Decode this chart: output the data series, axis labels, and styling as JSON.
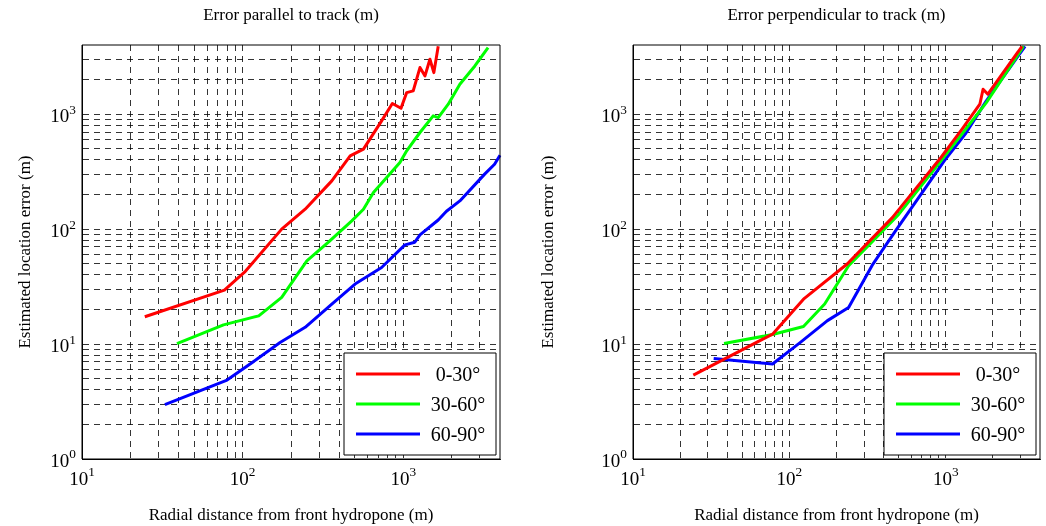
{
  "chart_data": [
    {
      "type": "line",
      "title": "Error parallel to track (m)",
      "xlabel": "Radial distance from front hydropone (m)",
      "ylabel": "Estimated location error (m)",
      "log": "xy",
      "grid": true,
      "legend": "bottom right",
      "xlim": [
        10,
        4000
      ],
      "ylim": [
        1,
        4000
      ],
      "xticks": [
        {
          "value": 10,
          "label": "10$^{1}$"
        },
        {
          "value": 20,
          "label": null
        },
        {
          "value": 30,
          "label": null
        },
        {
          "value": 40,
          "label": null
        },
        {
          "value": 50,
          "label": null
        },
        {
          "value": 60,
          "label": null
        },
        {
          "value": 70,
          "label": null
        },
        {
          "value": 80,
          "label": null
        },
        {
          "value": 90,
          "label": null
        },
        {
          "value": 100,
          "label": "10$^{2}$"
        },
        {
          "value": 200,
          "label": null
        },
        {
          "value": 300,
          "label": null
        },
        {
          "value": 400,
          "label": null
        },
        {
          "value": 500,
          "label": null
        },
        {
          "value": 600,
          "label": null
        },
        {
          "value": 700,
          "label": null
        },
        {
          "value": 800,
          "label": null
        },
        {
          "value": 900,
          "label": null
        },
        {
          "value": 1000,
          "label": "10$^{3}$"
        },
        {
          "value": 2000,
          "label": null
        },
        {
          "value": 3000,
          "label": null
        }
      ],
      "yticks": [
        {
          "value": 1,
          "label": "10$^{0}$"
        },
        {
          "value": 2,
          "label": null
        },
        {
          "value": 3,
          "label": null
        },
        {
          "value": 4,
          "label": null
        },
        {
          "value": 5,
          "label": null
        },
        {
          "value": 6,
          "label": null
        },
        {
          "value": 7,
          "label": null
        },
        {
          "value": 8,
          "label": null
        },
        {
          "value": 9,
          "label": null
        },
        {
          "value": 10,
          "label": "10$^{1}$"
        },
        {
          "value": 20,
          "label": null
        },
        {
          "value": 30,
          "label": null
        },
        {
          "value": 40,
          "label": null
        },
        {
          "value": 50,
          "label": null
        },
        {
          "value": 60,
          "label": null
        },
        {
          "value": 70,
          "label": null
        },
        {
          "value": 80,
          "label": null
        },
        {
          "value": 90,
          "label": null
        },
        {
          "value": 100,
          "label": "10$^{2}$"
        },
        {
          "value": 200,
          "label": null
        },
        {
          "value": 300,
          "label": null
        },
        {
          "value": 400,
          "label": null
        },
        {
          "value": 500,
          "label": null
        },
        {
          "value": 600,
          "label": null
        },
        {
          "value": 700,
          "label": null
        },
        {
          "value": 800,
          "label": null
        },
        {
          "value": 900,
          "label": null
        },
        {
          "value": 1000,
          "label": "10$^{3}$"
        },
        {
          "value": 2000,
          "label": null
        },
        {
          "value": 3000,
          "label": null
        }
      ],
      "series": [
        {
          "name": "0-30°",
          "color": "#ff0000",
          "x": [
            24.6,
            77,
            104,
            175,
            245,
            359,
            467,
            565,
            733,
            855,
            968,
            1050,
            1153,
            1270,
            1365,
            1465,
            1550,
            1650
          ],
          "values": [
            17.3,
            29.5,
            43,
            100,
            149,
            263,
            434,
            497,
            875,
            1240,
            1127,
            1541,
            1595,
            2546,
            2153,
            3006,
            2300,
            3900
          ]
        },
        {
          "name": "30-60°",
          "color": "#00ff00",
          "x": [
            39,
            76,
            126,
            175,
            251,
            342,
            478,
            565,
            652,
            953,
            1050,
            1270,
            1535,
            1650,
            1905,
            2250,
            2790,
            3370
          ],
          "values": [
            10.1,
            14.7,
            17.6,
            25.5,
            53,
            77,
            118,
            149,
            208,
            380,
            480,
            693,
            968,
            935,
            1222,
            1824,
            2630,
            3800
          ]
        },
        {
          "name": "60-90°",
          "color": "#0000ff",
          "x": [
            32.8,
            80,
            123,
            171,
            245,
            359,
            501,
            733,
            1024,
            1180,
            1270,
            1650,
            1857,
            2250,
            3210,
            3700,
            4000
          ],
          "values": [
            2.97,
            4.86,
            7.4,
            10.3,
            14,
            22.3,
            33.3,
            46.4,
            73,
            77,
            89,
            120,
            143,
            176,
            301,
            367,
            440
          ]
        }
      ]
    },
    {
      "type": "line",
      "title": "Error perpendicular to track (m)",
      "xlabel": "Radial distance from front hydropone (m)",
      "ylabel": "Estimated location error (m)",
      "log": "xy",
      "grid": true,
      "legend": "bottom right",
      "xlim": [
        10,
        4000
      ],
      "ylim": [
        1,
        4000
      ],
      "xticks": [
        {
          "value": 10,
          "label": "10$^{1}$"
        },
        {
          "value": 20,
          "label": null
        },
        {
          "value": 30,
          "label": null
        },
        {
          "value": 40,
          "label": null
        },
        {
          "value": 50,
          "label": null
        },
        {
          "value": 60,
          "label": null
        },
        {
          "value": 70,
          "label": null
        },
        {
          "value": 80,
          "label": null
        },
        {
          "value": 90,
          "label": null
        },
        {
          "value": 100,
          "label": "10$^{2}$"
        },
        {
          "value": 200,
          "label": null
        },
        {
          "value": 300,
          "label": null
        },
        {
          "value": 400,
          "label": null
        },
        {
          "value": 500,
          "label": null
        },
        {
          "value": 600,
          "label": null
        },
        {
          "value": 700,
          "label": null
        },
        {
          "value": 800,
          "label": null
        },
        {
          "value": 900,
          "label": null
        },
        {
          "value": 1000,
          "label": "10$^{3}$"
        },
        {
          "value": 2000,
          "label": null
        },
        {
          "value": 3000,
          "label": null
        }
      ],
      "yticks": [
        {
          "value": 1,
          "label": "10$^{0}$"
        },
        {
          "value": 2,
          "label": null
        },
        {
          "value": 3,
          "label": null
        },
        {
          "value": 4,
          "label": null
        },
        {
          "value": 5,
          "label": null
        },
        {
          "value": 6,
          "label": null
        },
        {
          "value": 7,
          "label": null
        },
        {
          "value": 8,
          "label": null
        },
        {
          "value": 9,
          "label": null
        },
        {
          "value": 10,
          "label": "10$^{1}$"
        },
        {
          "value": 20,
          "label": null
        },
        {
          "value": 30,
          "label": null
        },
        {
          "value": 40,
          "label": null
        },
        {
          "value": 50,
          "label": null
        },
        {
          "value": 60,
          "label": null
        },
        {
          "value": 70,
          "label": null
        },
        {
          "value": 80,
          "label": null
        },
        {
          "value": 90,
          "label": null
        },
        {
          "value": 100,
          "label": "10$^{2}$"
        },
        {
          "value": 200,
          "label": null
        },
        {
          "value": 300,
          "label": null
        },
        {
          "value": 400,
          "label": null
        },
        {
          "value": 500,
          "label": null
        },
        {
          "value": 600,
          "label": null
        },
        {
          "value": 700,
          "label": null
        },
        {
          "value": 800,
          "label": null
        },
        {
          "value": 900,
          "label": null
        },
        {
          "value": 1000,
          "label": "10$^{3}$"
        },
        {
          "value": 2000,
          "label": null
        },
        {
          "value": 3000,
          "label": null
        }
      ],
      "series": [
        {
          "name": "0-30°",
          "color": "#ff0000",
          "x": [
            24.3,
            42,
            78,
            123,
            234,
            455,
            931,
            1270,
            1650,
            1730,
            1857,
            3070
          ],
          "values": [
            5.37,
            7.9,
            12.2,
            24.6,
            49.7,
            126,
            420,
            741,
            1222,
            1650,
            1492,
            3900
          ]
        },
        {
          "name": "30-60°",
          "color": "#00ff00",
          "x": [
            38.2,
            78,
            123,
            168,
            239,
            342,
            501,
            931,
            1365,
            1815,
            3140
          ],
          "values": [
            10.1,
            12.1,
            14.2,
            22.3,
            48,
            79,
            135,
            393,
            766,
            1262,
            3900
          ]
        },
        {
          "name": "60-90°",
          "color": "#0000ff",
          "x": [
            32.8,
            78,
            117,
            175,
            239,
            342,
            478,
            977,
            1330,
            1815,
            3210
          ],
          "values": [
            7.5,
            6.7,
            10.3,
            16,
            20.8,
            49.7,
            97,
            393,
            670,
            1306,
            3900
          ]
        }
      ]
    }
  ]
}
